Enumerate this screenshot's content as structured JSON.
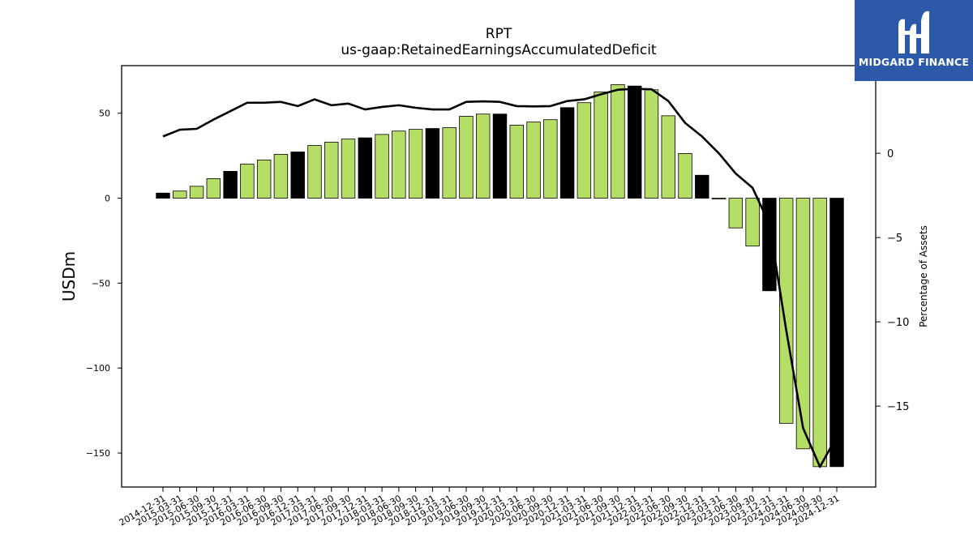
{
  "chart_data": {
    "type": "bar",
    "title": "RPT",
    "subtitle": "us-gaap:RetainedEarningsAccumulatedDeficit",
    "ylabel": "USDm",
    "y2label": "Percentage of Assets",
    "ylim": [
      -170,
      78
    ],
    "y2lim": [
      -19.8,
      5.2
    ],
    "yticks": [
      50,
      0,
      -50,
      -100,
      -150
    ],
    "y2ticks": [
      0,
      -5,
      -10,
      -15
    ],
    "categories": [
      "2014-12-31",
      "2015-03-31",
      "2015-06-30",
      "2015-09-30",
      "2015-12-31",
      "2016-03-31",
      "2016-06-30",
      "2016-09-30",
      "2016-12-31",
      "2017-03-31",
      "2017-06-30",
      "2017-09-30",
      "2017-12-31",
      "2018-03-31",
      "2018-06-30",
      "2018-09-30",
      "2018-12-31",
      "2019-03-31",
      "2019-06-30",
      "2019-09-30",
      "2019-12-31",
      "2020-03-31",
      "2020-06-30",
      "2020-09-30",
      "2020-12-31",
      "2021-03-31",
      "2021-06-30",
      "2021-09-30",
      "2021-12-31",
      "2022-03-31",
      "2022-06-30",
      "2022-09-30",
      "2022-12-31",
      "2023-03-31",
      "2023-06-30",
      "2023-09-30",
      "2023-12-31",
      "2024-03-31",
      "2024-06-30",
      "2024-09-30",
      "2024-12-31"
    ],
    "series": [
      {
        "type": "bar",
        "values": [
          3,
          4.2,
          7,
          11.5,
          15.8,
          20,
          22.5,
          25.8,
          27.2,
          31,
          33,
          34.8,
          35.5,
          37.5,
          39.5,
          40.5,
          41,
          41.5,
          48.2,
          49.5,
          49.5,
          43,
          44.8,
          46.2,
          53.3,
          56.2,
          62.5,
          66.8,
          66,
          63.8,
          48.5,
          26.3,
          13.5,
          -0.5,
          -17.5,
          -28.2,
          -54.5,
          -132.5,
          -147.5,
          -158,
          -158
        ]
      },
      {
        "type": "line",
        "axis": "right",
        "values": [
          1.0,
          1.4,
          1.45,
          2.0,
          2.5,
          3.0,
          3.0,
          3.05,
          2.8,
          3.2,
          2.85,
          2.95,
          2.6,
          2.75,
          2.85,
          2.7,
          2.6,
          2.6,
          3.05,
          3.08,
          3.05,
          2.8,
          2.78,
          2.8,
          3.1,
          3.2,
          3.5,
          3.77,
          3.82,
          3.8,
          3.1,
          1.8,
          1.0,
          0.0,
          -1.2,
          -2.05,
          -4.2,
          -10.5,
          -16.3,
          -18.6,
          -16.8
        ]
      }
    ],
    "colors": {
      "bar_green": "#b5de67",
      "bar_black": "#000000",
      "line": "#000000"
    },
    "bar_highlight_every": 4
  },
  "logo": {
    "text": "MIDGARD FINANCE",
    "icon": "midgard-logo-icon"
  }
}
